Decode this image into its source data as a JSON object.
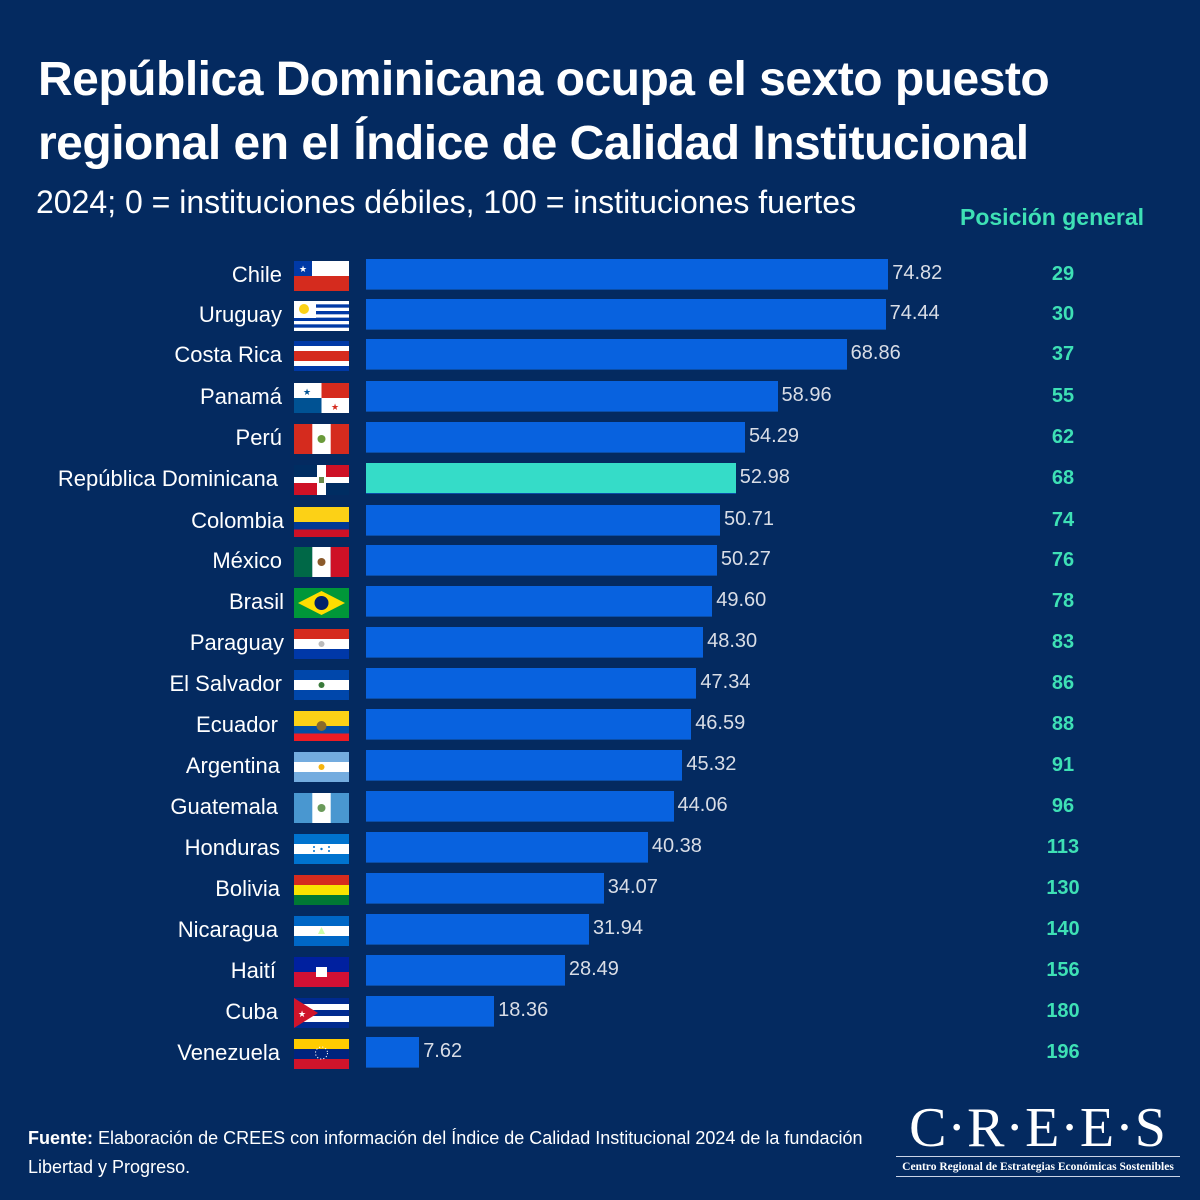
{
  "title": "República Dominicana ocupa el sexto puesto regional en el Índice de Calidad Institucional",
  "subtitle": "2024; 0 =  instituciones débiles, 100 = instituciones fuertes",
  "rank_header": "Posición general",
  "colors": {
    "background": "#042a60",
    "bar": "#0862df",
    "highlight_bar": "#35dcc8",
    "rank_text": "#3ee0b5"
  },
  "chart_data": {
    "type": "bar",
    "orientation": "horizontal",
    "title": "República Dominicana ocupa el sexto puesto regional en el Índice de Calidad Institucional",
    "subtitle": "2024; 0 =  instituciones débiles, 100 = instituciones fuertes",
    "xlabel": "",
    "ylabel": "",
    "xlim": [
      0,
      100
    ],
    "grid": false,
    "highlight": "República Dominicana",
    "categories": [
      "Chile",
      "Uruguay",
      "Costa Rica",
      "Panamá",
      "Perú",
      "República Dominicana",
      "Colombia",
      "México",
      "Brasil",
      "Paraguay",
      "El Salvador",
      "Ecuador",
      "Argentina",
      "Guatemala",
      "Honduras",
      "Bolivia",
      "Nicaragua",
      "Haití",
      "Cuba",
      "Venezuela"
    ],
    "values": [
      74.82,
      74.44,
      68.86,
      58.96,
      54.29,
      52.98,
      50.71,
      50.27,
      49.6,
      48.3,
      47.34,
      46.59,
      45.32,
      44.06,
      40.38,
      34.07,
      31.94,
      28.49,
      18.36,
      7.62
    ],
    "value_labels": [
      "74.82",
      "74.44",
      "68.86",
      "58.96",
      "54.29",
      "52.98",
      "50.71",
      "50.27",
      "49.60",
      "48.30",
      "47.34",
      "46.59",
      "45.32",
      "44.06",
      "40.38",
      "34.07",
      "31.94",
      "28.49",
      "18.36",
      "7.62"
    ],
    "ranks": [
      "29",
      "30",
      "37",
      "55",
      "62",
      "68",
      "74",
      "76",
      "78",
      "83",
      "86",
      "88",
      "91",
      "96",
      "113",
      "130",
      "140",
      "156",
      "180",
      "196"
    ],
    "flags": [
      "chile-flag-icon",
      "uruguay-flag-icon",
      "costa-rica-flag-icon",
      "panama-flag-icon",
      "peru-flag-icon",
      "dominican-republic-flag-icon",
      "colombia-flag-icon",
      "mexico-flag-icon",
      "brazil-flag-icon",
      "paraguay-flag-icon",
      "el-salvador-flag-icon",
      "ecuador-flag-icon",
      "argentina-flag-icon",
      "guatemala-flag-icon",
      "honduras-flag-icon",
      "bolivia-flag-icon",
      "nicaragua-flag-icon",
      "haiti-flag-icon",
      "cuba-flag-icon",
      "venezuela-flag-icon"
    ]
  },
  "footer": {
    "label": "Fuente:",
    "text": " Elaboración de CREES con información del Índice de Calidad Institucional 2024 de la fundación Libertad y Progreso."
  },
  "logo": {
    "wordmark": "C·R·E·E·S",
    "tagline": "Centro Regional de Estrategias Económicas Sostenibles"
  }
}
